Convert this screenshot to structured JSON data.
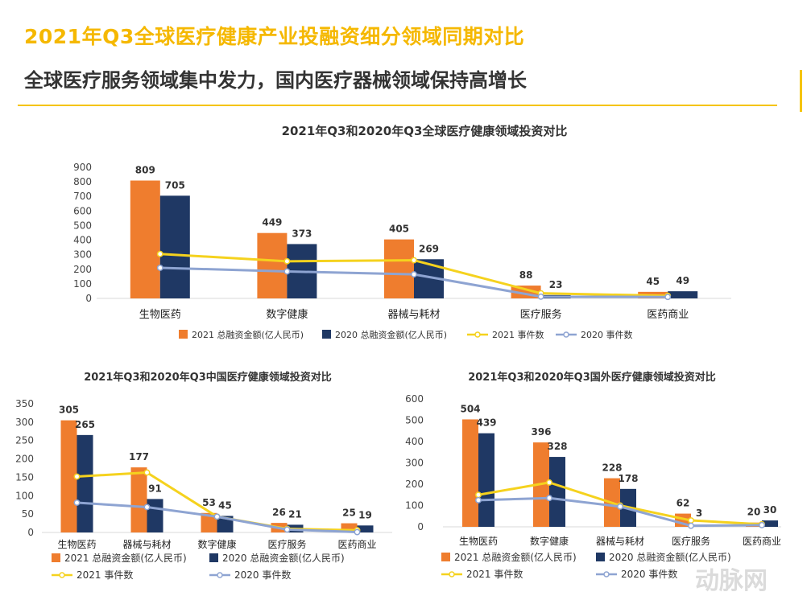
{
  "page": {
    "title": "2021年Q3全球医疗健康产业投融资细分领域同期对比",
    "subtitle": "全球医疗服务领域集中发力，国内医疗器械领域保持高增长",
    "watermark": "动脉网"
  },
  "colors": {
    "bar2021": "#ef7d2e",
    "bar2020": "#1f3864",
    "line2021": "#f5d21e",
    "line2020": "#8ea4d2",
    "title": "#f5b800"
  },
  "chart_data": [
    {
      "type": "bar",
      "title": "2021年Q3和2020年Q3全球医疗健康领域投资对比",
      "categories": [
        "生物医药",
        "数字健康",
        "器械与耗材",
        "医疗服务",
        "医药商业"
      ],
      "ylim": [
        0,
        900
      ],
      "yticks": [
        0,
        100,
        200,
        300,
        400,
        500,
        600,
        700,
        800,
        900
      ],
      "series": [
        {
          "name": "2021 总融资金额(亿人民币)",
          "kind": "bar",
          "values": [
            809,
            449,
            405,
            88,
            45
          ]
        },
        {
          "name": "2020 总融资金额(亿人民币)",
          "kind": "bar",
          "values": [
            705,
            373,
            269,
            23,
            49
          ]
        },
        {
          "name": "2021 事件数",
          "kind": "line",
          "values": [
            305,
            255,
            262,
            35,
            18
          ]
        },
        {
          "name": "2020 事件数",
          "kind": "line",
          "values": [
            210,
            185,
            165,
            12,
            10
          ]
        }
      ]
    },
    {
      "type": "bar",
      "title": "2021年Q3和2020年Q3中国医疗健康领域投资对比",
      "categories": [
        "生物医药",
        "器械与耗材",
        "数字健康",
        "医疗服务",
        "医药商业"
      ],
      "ylim": [
        0,
        350
      ],
      "yticks": [
        0,
        50,
        100,
        150,
        200,
        250,
        300,
        350
      ],
      "series": [
        {
          "name": "2021  总融资金额(亿人民币)",
          "kind": "bar",
          "values": [
            305,
            177,
            53,
            26,
            25
          ]
        },
        {
          "name": "2020 总融资金额(亿人民币)",
          "kind": "bar",
          "values": [
            265,
            91,
            45,
            21,
            19
          ]
        },
        {
          "name": "2021 事件数",
          "kind": "line",
          "values": [
            152,
            163,
            43,
            10,
            6
          ]
        },
        {
          "name": "2020 事件数",
          "kind": "line",
          "values": [
            81,
            69,
            43,
            8,
            1
          ]
        }
      ]
    },
    {
      "type": "bar",
      "title": "2021年Q3和2020年Q3国外医疗健康领域投资对比",
      "categories": [
        "生物医药",
        "数字健康",
        "器械与耗材",
        "医疗服务",
        "医药商业"
      ],
      "ylim": [
        0,
        600
      ],
      "yticks": [
        0,
        100,
        200,
        300,
        400,
        500,
        600
      ],
      "series": [
        {
          "name": "2021 总融资金额(亿人民币)",
          "kind": "bar",
          "values": [
            504,
            396,
            228,
            62,
            20
          ]
        },
        {
          "name": "2020 总融资金额(亿人民币)",
          "kind": "bar",
          "values": [
            439,
            328,
            178,
            3,
            30
          ]
        },
        {
          "name": "2021 事件数",
          "kind": "line",
          "values": [
            150,
            208,
            100,
            30,
            12
          ]
        },
        {
          "name": "2020 事件数",
          "kind": "line",
          "values": [
            125,
            135,
            95,
            5,
            8
          ]
        }
      ]
    }
  ]
}
